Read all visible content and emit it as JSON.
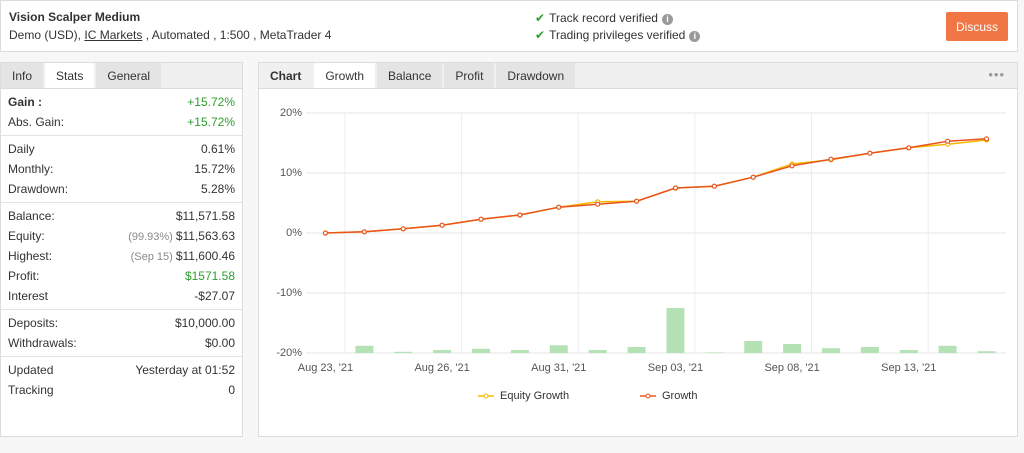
{
  "header": {
    "title": "Vision Scalper Medium",
    "account": "Demo (USD),",
    "broker": "IC Markets",
    "details": ", Automated , 1:500 , MetaTrader 4",
    "verified": [
      "Track record verified",
      "Trading privileges verified"
    ],
    "button": "Discuss"
  },
  "left_tabs": [
    "Info",
    "Stats",
    "General"
  ],
  "stats": [
    [
      {
        "label": "Gain :",
        "value": "+15.72%",
        "color": "#2e9e2e"
      },
      {
        "label": "Abs. Gain:",
        "value": "+15.72%",
        "color": "#2e9e2e"
      }
    ],
    [
      {
        "label": "Daily",
        "value": "0.61%"
      },
      {
        "label": "Monthly:",
        "value": "15.72%"
      },
      {
        "label": "Drawdown:",
        "value": "5.28%"
      }
    ],
    [
      {
        "label": "Balance:",
        "value": "$11,571.58"
      },
      {
        "label": "Equity:",
        "note": "(99.93%)",
        "value": "$11,563.63"
      },
      {
        "label": "Highest:",
        "note": "(Sep 15)",
        "value": "$11,600.46"
      },
      {
        "label": "Profit:",
        "value": "$1571.58",
        "color": "#2e9e2e"
      },
      {
        "label": "Interest",
        "value": "-$27.07"
      }
    ],
    [
      {
        "label": "Deposits:",
        "value": "$10,000.00"
      },
      {
        "label": "Withdrawals:",
        "value": "$0.00"
      }
    ],
    [
      {
        "label": "Updated",
        "value": "Yesterday at 01:52"
      },
      {
        "label": "Tracking",
        "value": "0"
      }
    ]
  ],
  "chart_tabs": [
    "Chart",
    "Growth",
    "Balance",
    "Profit",
    "Drawdown"
  ],
  "chart_data": {
    "type": "line",
    "categories": [
      "Aug 23, '21",
      null,
      null,
      "Aug 26, '21",
      null,
      null,
      "Aug 31, '21",
      null,
      null,
      "Sep 03, '21",
      null,
      null,
      "Sep 08, '21",
      null,
      null,
      "Sep 13, '21",
      null,
      null
    ],
    "series": [
      {
        "name": "Equity Growth",
        "color": "#f5b800",
        "values": [
          0.0,
          0.2,
          0.7,
          1.3,
          2.3,
          3.0,
          4.3,
          5.2,
          5.3,
          7.5,
          7.8,
          9.3,
          11.5,
          12.2,
          13.3,
          14.2,
          14.8,
          15.5
        ]
      },
      {
        "name": "Growth",
        "color": "#e8541e",
        "values": [
          0.0,
          0.2,
          0.7,
          1.3,
          2.3,
          3.0,
          4.3,
          4.8,
          5.3,
          7.5,
          7.8,
          9.3,
          11.2,
          12.3,
          13.3,
          14.2,
          15.3,
          15.7
        ]
      }
    ],
    "bars": {
      "color": "#b5e2b5",
      "values": [
        null,
        1.2,
        0.2,
        0.5,
        0.7,
        0.5,
        1.3,
        0.5,
        1.0,
        7.5,
        0.1,
        2.0,
        1.5,
        0.8,
        1.0,
        0.5,
        1.2,
        0.3
      ]
    },
    "ylim": [
      -20,
      20
    ],
    "yticks": [
      {
        "value": -20,
        "label": "-20%"
      },
      {
        "value": -10,
        "label": "-10%"
      },
      {
        "value": 0,
        "label": "0%"
      },
      {
        "value": 10,
        "label": "10%"
      },
      {
        "value": 20,
        "label": "20%"
      }
    ],
    "grid": true
  }
}
